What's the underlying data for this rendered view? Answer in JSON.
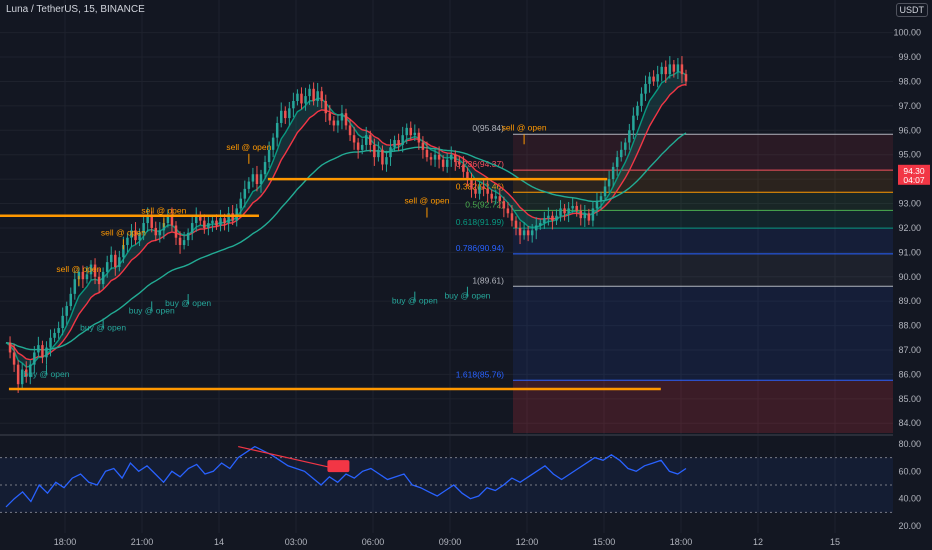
{
  "header": {
    "symbol": "Luna / TetherUS, 15, BINANCE",
    "currency": "USDT"
  },
  "chart_data": {
    "type": "candlestick",
    "x_ticks": [
      "18:00",
      "21:00",
      "14",
      "03:00",
      "06:00",
      "09:00",
      "12:00",
      "15:00",
      "18:00",
      "12",
      "15"
    ],
    "price_axis": {
      "ticks": [
        "100.00",
        "99.00",
        "98.00",
        "97.00",
        "96.00",
        "95.00",
        "94.00",
        "93.00",
        "92.00",
        "91.00",
        "90.00",
        "89.00",
        "88.00",
        "87.00",
        "86.00",
        "85.00",
        "84.00"
      ],
      "min": 83.6,
      "max": 100.6
    },
    "price_labels": {
      "current": "94.30",
      "timer": "04:07"
    },
    "candles_start": 87.3,
    "candles_delta": [
      -0.4,
      -0.5,
      -0.8,
      0.6,
      -0.3,
      0.5,
      0.5,
      0.3,
      -0.5,
      0.4,
      0.4,
      0.2,
      0.2,
      0.5,
      0.4,
      0.5,
      0.6,
      0.3,
      -0.3,
      0.2,
      0.4,
      -0.5,
      -0.3,
      0.5,
      0.4,
      0.3,
      -0.5,
      0.4,
      0.5,
      0.3,
      0.3,
      -0.4,
      0.3,
      0.4,
      0.3,
      -0.5,
      -0.3,
      0.2,
      0.3,
      0.3,
      -0.4,
      -0.5,
      -0.3,
      0.2,
      0.3,
      0.4,
      0.3,
      -0.2,
      -0.3,
      0.2,
      0.1,
      -0.2,
      0.3,
      -0.2,
      0.4,
      -0.3,
      0.5,
      0.4,
      0.4,
      0.3,
      0.3,
      -0.4,
      0.4,
      0.5,
      0.5,
      0.5,
      0.6,
      0.5,
      -0.3,
      0.4,
      0.3,
      0.3,
      -0.4,
      0.3,
      0.3,
      -0.5,
      0.4,
      -0.4,
      -0.5,
      -0.3,
      -0.2,
      0.2,
      0.3,
      -0.5,
      -0.4,
      -0.3,
      -0.3,
      0.2,
      0.4,
      -0.4,
      -0.5,
      0.3,
      -0.6,
      0.3,
      0.4,
      0.3,
      -0.2,
      0.4,
      0.3,
      -0.3,
      0.1,
      -0.4,
      -0.3,
      -0.3,
      -0.1,
      0.2,
      -0.2,
      -0.3,
      0.3,
      0.2,
      -0.3,
      -0.1,
      -0.3,
      -0.3,
      -0.4,
      -0.2,
      0.3,
      -0.1,
      -0.2,
      -0.2,
      0.1,
      -0.2,
      -0.3,
      -0.2,
      -0.3,
      -0.3,
      -0.3,
      0.2,
      -0.2,
      0.2,
      0.2,
      0.1,
      0.2,
      0.1,
      -0.2,
      0.2,
      0.3,
      -0.2,
      0.2,
      0.1,
      -0.2,
      -0.3,
      0.2,
      -0.3,
      0.5,
      0.3,
      0.2,
      0.4,
      0.3,
      0.5,
      0.4,
      0.3,
      0.3,
      0.5,
      0.6,
      0.4,
      0.5,
      0.4,
      0.3,
      -0.2,
      0.3,
      0.3,
      -0.3,
      0.4,
      -0.3,
      0.3,
      -0.4,
      -0.3
    ],
    "support_lines": [
      {
        "price": 94.0,
        "from": 0.3,
        "to": 0.68
      },
      {
        "price": 92.5,
        "from": 0.0,
        "to": 0.29
      },
      {
        "price": 85.4,
        "from": 0.01,
        "to": 0.74
      }
    ],
    "fib_levels": [
      {
        "label": "0(95.84)",
        "price": 95.84,
        "color": "#b2b5be"
      },
      {
        "label": "0.236(94.37)",
        "price": 94.37,
        "color": "#f7525f"
      },
      {
        "label": "0.382(93.46)",
        "price": 93.46,
        "color": "#ff9800"
      },
      {
        "label": "0.5(92.72)",
        "price": 92.72,
        "color": "#4caf50"
      },
      {
        "label": "0.618(91.99)",
        "price": 91.99,
        "color": "#089981"
      },
      {
        "label": "0.786(90.94)",
        "price": 90.94,
        "color": "#2962ff"
      },
      {
        "label": "1(89.61)",
        "price": 89.61,
        "color": "#b2b5be"
      },
      {
        "label": "1.618(85.76)",
        "price": 85.76,
        "color": "#2962ff"
      }
    ],
    "signals": [
      {
        "text": "sell @ open",
        "type": "sell",
        "bar": 18,
        "price": 90.2
      },
      {
        "text": "sell @ open",
        "type": "sell",
        "bar": 29,
        "price": 91.7
      },
      {
        "text": "sell @ open",
        "type": "sell",
        "bar": 39,
        "price": 92.6
      },
      {
        "text": "sell @ open",
        "type": "sell",
        "bar": 60,
        "price": 95.2
      },
      {
        "text": "sell @ open",
        "type": "sell",
        "bar": 104,
        "price": 93.0
      },
      {
        "text": "sell @ open",
        "type": "sell",
        "bar": 128,
        "price": 96.0
      },
      {
        "text": "buy @ open",
        "type": "buy",
        "bar": 10,
        "price": 85.9
      },
      {
        "text": "buy @ open",
        "type": "buy",
        "bar": 24,
        "price": 87.8
      },
      {
        "text": "buy @ open",
        "type": "buy",
        "bar": 36,
        "price": 88.5
      },
      {
        "text": "buy @ open",
        "type": "buy",
        "bar": 45,
        "price": 88.8
      },
      {
        "text": "buy @ open",
        "type": "buy",
        "bar": 101,
        "price": 88.9
      },
      {
        "text": "buy @ open",
        "type": "buy",
        "bar": 114,
        "price": 89.1
      }
    ],
    "rsi": {
      "ticks": [
        "80.00",
        "60.00",
        "40.00",
        "20.00"
      ],
      "min": 15,
      "max": 85,
      "values": [
        34,
        40,
        45,
        38,
        50,
        44,
        52,
        48,
        55,
        58,
        52,
        50,
        60,
        62,
        55,
        66,
        60,
        64,
        58,
        52,
        60,
        56,
        62,
        65,
        58,
        60,
        66,
        62,
        70,
        74,
        78,
        75,
        72,
        68,
        64,
        62,
        60,
        55,
        50,
        56,
        52,
        58,
        55,
        60,
        62,
        58,
        54,
        56,
        58,
        50,
        48,
        45,
        42,
        46,
        50,
        44,
        40,
        42,
        48,
        46,
        50,
        55,
        52,
        56,
        60,
        64,
        58,
        54,
        58,
        62,
        66,
        70,
        68,
        72,
        68,
        62,
        60,
        64,
        66,
        68,
        60,
        58,
        62
      ],
      "overbought": 70,
      "midline": 50,
      "oversold": 30,
      "badge": ""
    }
  },
  "colors": {
    "up": "#26a69a",
    "down": "#ef5350",
    "ema_fast": "#089981",
    "ema_red": "#f23645",
    "ema_slow": "#22ab94",
    "rsi_line": "#2962ff",
    "sr_line": "#ff9800"
  }
}
